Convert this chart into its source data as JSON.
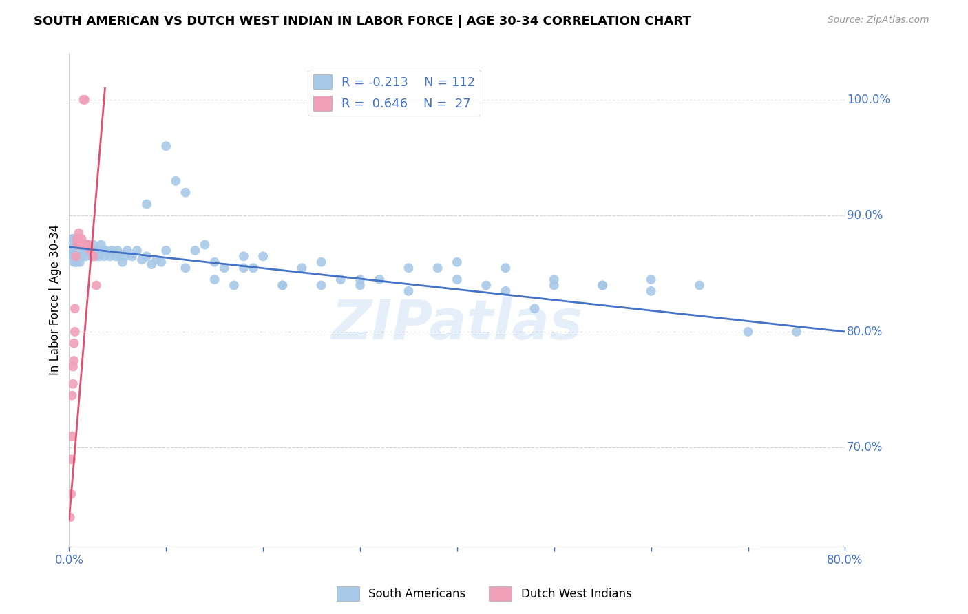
{
  "title": "SOUTH AMERICAN VS DUTCH WEST INDIAN IN LABOR FORCE | AGE 30-34 CORRELATION CHART",
  "source": "Source: ZipAtlas.com",
  "ylabel": "In Labor Force | Age 30-34",
  "ytick_labels": [
    "100.0%",
    "90.0%",
    "80.0%",
    "70.0%"
  ],
  "ytick_values": [
    1.0,
    0.9,
    0.8,
    0.7
  ],
  "xmin": 0.0,
  "xmax": 0.8,
  "ymin": 0.615,
  "ymax": 1.04,
  "blue_color": "#a8c8e8",
  "pink_color": "#f0a0b8",
  "blue_line_color": "#4472c4",
  "pink_line_color": "#e05070",
  "watermark": "ZIPatlas",
  "legend_blue_R": "R = -0.213",
  "legend_blue_N": "N = 112",
  "legend_pink_R": "R =  0.646",
  "legend_pink_N": "N =  27",
  "blue_scatter_x": [
    0.002,
    0.003,
    0.003,
    0.004,
    0.004,
    0.004,
    0.005,
    0.005,
    0.005,
    0.005,
    0.006,
    0.006,
    0.006,
    0.006,
    0.007,
    0.007,
    0.007,
    0.008,
    0.008,
    0.008,
    0.009,
    0.009,
    0.01,
    0.01,
    0.01,
    0.011,
    0.011,
    0.012,
    0.012,
    0.013,
    0.014,
    0.015,
    0.016,
    0.017,
    0.018,
    0.019,
    0.02,
    0.021,
    0.022,
    0.023,
    0.025,
    0.026,
    0.027,
    0.028,
    0.029,
    0.03,
    0.031,
    0.032,
    0.033,
    0.035,
    0.036,
    0.038,
    0.04,
    0.042,
    0.044,
    0.046,
    0.048,
    0.05,
    0.052,
    0.055,
    0.058,
    0.06,
    0.065,
    0.07,
    0.075,
    0.08,
    0.085,
    0.09,
    0.095,
    0.1,
    0.11,
    0.12,
    0.13,
    0.14,
    0.15,
    0.16,
    0.17,
    0.18,
    0.19,
    0.2,
    0.22,
    0.24,
    0.26,
    0.28,
    0.3,
    0.32,
    0.35,
    0.38,
    0.4,
    0.43,
    0.45,
    0.48,
    0.5,
    0.55,
    0.6,
    0.65,
    0.7,
    0.75,
    0.08,
    0.1,
    0.12,
    0.15,
    0.18,
    0.22,
    0.26,
    0.3,
    0.35,
    0.4,
    0.45,
    0.5,
    0.55,
    0.6
  ],
  "blue_scatter_y": [
    0.875,
    0.87,
    0.88,
    0.865,
    0.875,
    0.88,
    0.86,
    0.875,
    0.87,
    0.865,
    0.875,
    0.88,
    0.865,
    0.87,
    0.87,
    0.875,
    0.86,
    0.875,
    0.87,
    0.86,
    0.865,
    0.87,
    0.875,
    0.865,
    0.87,
    0.875,
    0.86,
    0.87,
    0.875,
    0.865,
    0.87,
    0.875,
    0.87,
    0.865,
    0.87,
    0.875,
    0.868,
    0.87,
    0.872,
    0.865,
    0.875,
    0.87,
    0.865,
    0.87,
    0.87,
    0.868,
    0.865,
    0.87,
    0.875,
    0.87,
    0.865,
    0.87,
    0.868,
    0.865,
    0.87,
    0.868,
    0.865,
    0.87,
    0.865,
    0.86,
    0.865,
    0.87,
    0.865,
    0.87,
    0.862,
    0.865,
    0.858,
    0.862,
    0.86,
    0.96,
    0.93,
    0.92,
    0.87,
    0.875,
    0.86,
    0.855,
    0.84,
    0.865,
    0.855,
    0.865,
    0.84,
    0.855,
    0.84,
    0.845,
    0.84,
    0.845,
    0.835,
    0.855,
    0.845,
    0.84,
    0.835,
    0.82,
    0.84,
    0.84,
    0.835,
    0.84,
    0.8,
    0.8,
    0.91,
    0.87,
    0.855,
    0.845,
    0.855,
    0.84,
    0.86,
    0.845,
    0.855,
    0.86,
    0.855,
    0.845,
    0.84,
    0.845
  ],
  "pink_scatter_x": [
    0.001,
    0.002,
    0.002,
    0.003,
    0.003,
    0.004,
    0.004,
    0.005,
    0.005,
    0.006,
    0.006,
    0.007,
    0.008,
    0.008,
    0.009,
    0.01,
    0.011,
    0.012,
    0.013,
    0.014,
    0.015,
    0.016,
    0.018,
    0.02,
    0.022,
    0.025,
    0.028
  ],
  "pink_scatter_y": [
    0.64,
    0.66,
    0.69,
    0.71,
    0.745,
    0.755,
    0.77,
    0.775,
    0.79,
    0.8,
    0.82,
    0.865,
    0.875,
    0.88,
    0.88,
    0.885,
    0.88,
    0.875,
    0.88,
    0.875,
    1.0,
    1.0,
    0.875,
    0.875,
    0.87,
    0.865,
    0.84
  ],
  "blue_trend_x": [
    0.0,
    0.8
  ],
  "blue_trend_y": [
    0.873,
    0.8
  ],
  "pink_trend_x": [
    0.0,
    0.037
  ],
  "pink_trend_y": [
    0.638,
    1.01
  ]
}
